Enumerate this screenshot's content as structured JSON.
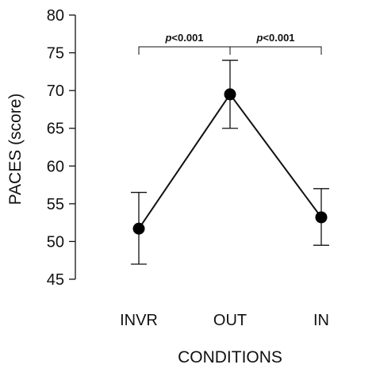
{
  "chart_data": {
    "type": "line",
    "title": "",
    "xlabel": "CONDITIONS",
    "ylabel": "PACES (score)",
    "categories": [
      "INVR",
      "OUT",
      "IN"
    ],
    "values": [
      51.7,
      69.5,
      53.2
    ],
    "error_low": [
      47.0,
      65.0,
      49.5
    ],
    "error_high": [
      56.5,
      74.0,
      57.0
    ],
    "ylim": [
      45,
      80
    ],
    "yticks": [
      45,
      50,
      55,
      60,
      65,
      70,
      75,
      80
    ],
    "ytick_labels": [
      "45",
      "50",
      "55",
      "60",
      "65",
      "70",
      "75",
      "80"
    ],
    "grid": false,
    "significance": [
      {
        "from": "INVR",
        "to": "OUT",
        "p_letter": "p",
        "p_rest": "<0.001"
      },
      {
        "from": "OUT",
        "to": "IN",
        "p_letter": "p",
        "p_rest": "<0.001"
      }
    ],
    "colors": {
      "line": "#111111",
      "marker": "#000000"
    }
  }
}
